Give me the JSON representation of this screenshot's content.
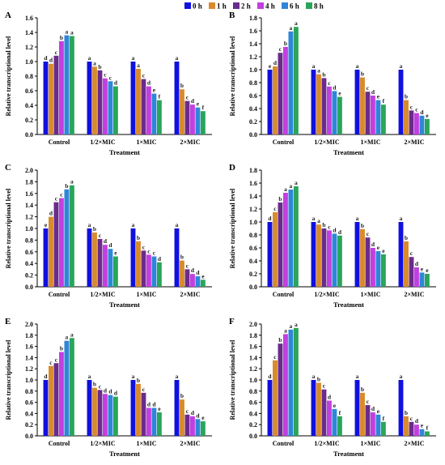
{
  "colors": {
    "0 h": "#1010e0",
    "1 h": "#d98a2b",
    "2 h": "#6a2c8c",
    "4 h": "#c23fe0",
    "6 h": "#2f86d8",
    "8 h": "#2aa55a",
    "text": "#000000",
    "letter": "#1a1a1a"
  },
  "legend": [
    "0 h",
    "1 h",
    "2 h",
    "4 h",
    "6 h",
    "8 h"
  ],
  "chart_data": [
    {
      "panel": "A",
      "type": "bar",
      "xlabel": "Treatment",
      "ylabel": "Relative transcriptional level",
      "ylim": [
        0,
        1.6
      ],
      "yticks": [
        "0.0",
        "0.2",
        "0.4",
        "0.6",
        "0.8",
        "1.0",
        "1.2",
        "1.4",
        "1.6"
      ],
      "categories": [
        "Control",
        "1/2×MIC",
        "1×MIC",
        "2×MIC"
      ],
      "series": [
        {
          "name": "0 h",
          "values": [
            1.0,
            1.0,
            1.0,
            1.0
          ],
          "letters": [
            "d",
            "a",
            "a",
            "a"
          ]
        },
        {
          "name": "1 h",
          "values": [
            0.97,
            0.93,
            0.9,
            0.62
          ],
          "letters": [
            "d",
            "a",
            "a",
            "b"
          ]
        },
        {
          "name": "2 h",
          "values": [
            1.08,
            0.88,
            0.76,
            0.46
          ],
          "letters": [
            "c",
            "b",
            "c",
            "c"
          ]
        },
        {
          "name": "4 h",
          "values": [
            1.28,
            0.77,
            0.66,
            0.41
          ],
          "letters": [
            "b",
            "c",
            "d",
            "d"
          ]
        },
        {
          "name": "6 h",
          "values": [
            1.36,
            0.73,
            0.56,
            0.37
          ],
          "letters": [
            "a",
            "c",
            "e",
            "e"
          ]
        },
        {
          "name": "8 h",
          "values": [
            1.35,
            0.66,
            0.47,
            0.32
          ],
          "letters": [
            "a",
            "d",
            "f",
            "f"
          ]
        }
      ]
    },
    {
      "panel": "B",
      "type": "bar",
      "xlabel": "Treatment",
      "ylabel": "Relative transcriptional level",
      "ylim": [
        0,
        1.8
      ],
      "yticks": [
        "0.0",
        "0.2",
        "0.4",
        "0.6",
        "0.8",
        "1.0",
        "1.2",
        "1.4",
        "1.6",
        "1.8"
      ],
      "categories": [
        "Control",
        "1/2×MIC",
        "1×MIC",
        "2×MIC"
      ],
      "series": [
        {
          "name": "0 h",
          "values": [
            1.0,
            1.0,
            1.0,
            1.0
          ],
          "letters": [
            "e",
            "a",
            "a",
            "a"
          ]
        },
        {
          "name": "1 h",
          "values": [
            1.05,
            0.93,
            0.88,
            0.53
          ],
          "letters": [
            "d",
            "a",
            "b",
            "b"
          ]
        },
        {
          "name": "2 h",
          "values": [
            1.26,
            0.87,
            0.66,
            0.37
          ],
          "letters": [
            "c",
            "b",
            "c",
            "c"
          ]
        },
        {
          "name": "4 h",
          "values": [
            1.35,
            0.74,
            0.6,
            0.33
          ],
          "letters": [
            "b",
            "c",
            "d",
            "c"
          ]
        },
        {
          "name": "6 h",
          "values": [
            1.59,
            0.67,
            0.53,
            0.29
          ],
          "letters": [
            "a",
            "d",
            "e",
            "d"
          ]
        },
        {
          "name": "8 h",
          "values": [
            1.66,
            0.58,
            0.46,
            0.24
          ],
          "letters": [
            "a",
            "e",
            "f",
            "e"
          ]
        }
      ]
    },
    {
      "panel": "C",
      "type": "bar",
      "xlabel": "Treatment",
      "ylabel": "Relative transcriptional level",
      "ylim": [
        0,
        2.0
      ],
      "yticks": [
        "0.0",
        "0.2",
        "0.4",
        "0.6",
        "0.8",
        "1.0",
        "1.2",
        "1.4",
        "1.6",
        "1.8",
        "2.0"
      ],
      "categories": [
        "Control",
        "1/2×MIC",
        "1×MIC",
        "2×MIC"
      ],
      "series": [
        {
          "name": "0 h",
          "values": [
            1.0,
            1.0,
            1.0,
            1.0
          ],
          "letters": [
            "e",
            "a",
            "a",
            "a"
          ]
        },
        {
          "name": "1 h",
          "values": [
            1.2,
            0.93,
            0.78,
            0.45
          ],
          "letters": [
            "d",
            "b",
            "b",
            "b"
          ]
        },
        {
          "name": "2 h",
          "values": [
            1.45,
            0.82,
            0.62,
            0.3
          ],
          "letters": [
            "c",
            "c",
            "c",
            "c"
          ]
        },
        {
          "name": "4 h",
          "values": [
            1.52,
            0.72,
            0.55,
            0.22
          ],
          "letters": [
            "c",
            "d",
            "c",
            "d"
          ]
        },
        {
          "name": "6 h",
          "values": [
            1.67,
            0.65,
            0.52,
            0.18
          ],
          "letters": [
            "b",
            "d",
            "c",
            "d"
          ]
        },
        {
          "name": "8 h",
          "values": [
            1.74,
            0.52,
            0.42,
            0.12
          ],
          "letters": [
            "a",
            "e",
            "d",
            "e"
          ]
        }
      ]
    },
    {
      "panel": "D",
      "type": "bar",
      "xlabel": "Treatment",
      "ylabel": "Relative transcriptional level",
      "ylim": [
        0,
        1.8
      ],
      "yticks": [
        "0.0",
        "0.2",
        "0.4",
        "0.6",
        "0.8",
        "1.0",
        "1.2",
        "1.4",
        "1.6",
        "1.8"
      ],
      "categories": [
        "Control",
        "1/2×MIC",
        "1×MIC",
        "2×MIC"
      ],
      "series": [
        {
          "name": "0 h",
          "values": [
            1.0,
            1.0,
            1.0,
            1.0
          ],
          "letters": [
            "d",
            "a",
            "a",
            "a"
          ]
        },
        {
          "name": "1 h",
          "values": [
            1.15,
            0.96,
            0.89,
            0.7
          ],
          "letters": [
            "c",
            "a",
            "b",
            "b"
          ]
        },
        {
          "name": "2 h",
          "values": [
            1.3,
            0.9,
            0.76,
            0.46
          ],
          "letters": [
            "b",
            "b",
            "c",
            "c"
          ]
        },
        {
          "name": "4 h",
          "values": [
            1.45,
            0.87,
            0.6,
            0.3
          ],
          "letters": [
            "a",
            "c",
            "d",
            "d"
          ]
        },
        {
          "name": "6 h",
          "values": [
            1.5,
            0.82,
            0.55,
            0.22
          ],
          "letters": [
            "a",
            "d",
            "e",
            "e"
          ]
        },
        {
          "name": "8 h",
          "values": [
            1.55,
            0.79,
            0.5,
            0.2
          ],
          "letters": [
            "a",
            "d",
            "e",
            "e"
          ]
        }
      ]
    },
    {
      "panel": "E",
      "type": "bar",
      "xlabel": "Treatment",
      "ylabel": "Relative transcriptional level",
      "ylim": [
        0,
        2.0
      ],
      "yticks": [
        "0.0",
        "0.2",
        "0.4",
        "0.6",
        "0.8",
        "1.0",
        "1.2",
        "1.4",
        "1.6",
        "1.8",
        "2.0"
      ],
      "categories": [
        "Control",
        "1/2×MIC",
        "1×MIC",
        "2×MIC"
      ],
      "series": [
        {
          "name": "0 h",
          "values": [
            1.0,
            1.0,
            1.0,
            1.0
          ],
          "letters": [
            "d",
            "a",
            "a",
            "a"
          ]
        },
        {
          "name": "1 h",
          "values": [
            1.25,
            0.86,
            0.93,
            0.65
          ],
          "letters": [
            "c",
            "b",
            "b",
            "b"
          ]
        },
        {
          "name": "2 h",
          "values": [
            1.3,
            0.82,
            0.77,
            0.38
          ],
          "letters": [
            "c",
            "c",
            "c",
            "c"
          ]
        },
        {
          "name": "4 h",
          "values": [
            1.5,
            0.75,
            0.5,
            0.35
          ],
          "letters": [
            "b",
            "d",
            "d",
            "d"
          ]
        },
        {
          "name": "6 h",
          "values": [
            1.7,
            0.73,
            0.5,
            0.3
          ],
          "letters": [
            "a",
            "d",
            "d",
            "d"
          ]
        },
        {
          "name": "8 h",
          "values": [
            1.75,
            0.7,
            0.42,
            0.26
          ],
          "letters": [
            "a",
            "d",
            "e",
            "e"
          ]
        }
      ]
    },
    {
      "panel": "F",
      "type": "bar",
      "xlabel": "Treatment",
      "ylabel": "Relative transcriptional level",
      "ylim": [
        0,
        2.0
      ],
      "yticks": [
        "0.0",
        "0.2",
        "0.4",
        "0.6",
        "0.8",
        "1.0",
        "1.2",
        "1.4",
        "1.6",
        "1.8",
        "2.0"
      ],
      "categories": [
        "Control",
        "1/2×MIC",
        "1×MIC",
        "2×MIC"
      ],
      "series": [
        {
          "name": "0 h",
          "values": [
            1.0,
            1.0,
            1.0,
            1.0
          ],
          "letters": [
            "d",
            "a",
            "a",
            "a"
          ]
        },
        {
          "name": "1 h",
          "values": [
            1.35,
            0.95,
            0.77,
            0.35
          ],
          "letters": [
            "c",
            "b",
            "b",
            "b"
          ]
        },
        {
          "name": "2 h",
          "values": [
            1.65,
            0.83,
            0.55,
            0.25
          ],
          "letters": [
            "b",
            "c",
            "c",
            "c"
          ]
        },
        {
          "name": "4 h",
          "values": [
            1.82,
            0.63,
            0.42,
            0.2
          ],
          "letters": [
            "a",
            "d",
            "d",
            "d"
          ]
        },
        {
          "name": "6 h",
          "values": [
            1.9,
            0.48,
            0.38,
            0.12
          ],
          "letters": [
            "a",
            "e",
            "e",
            "e"
          ]
        },
        {
          "name": "8 h",
          "values": [
            1.93,
            0.35,
            0.25,
            0.08
          ],
          "letters": [
            "a",
            "f",
            "f",
            "f"
          ]
        }
      ]
    }
  ]
}
